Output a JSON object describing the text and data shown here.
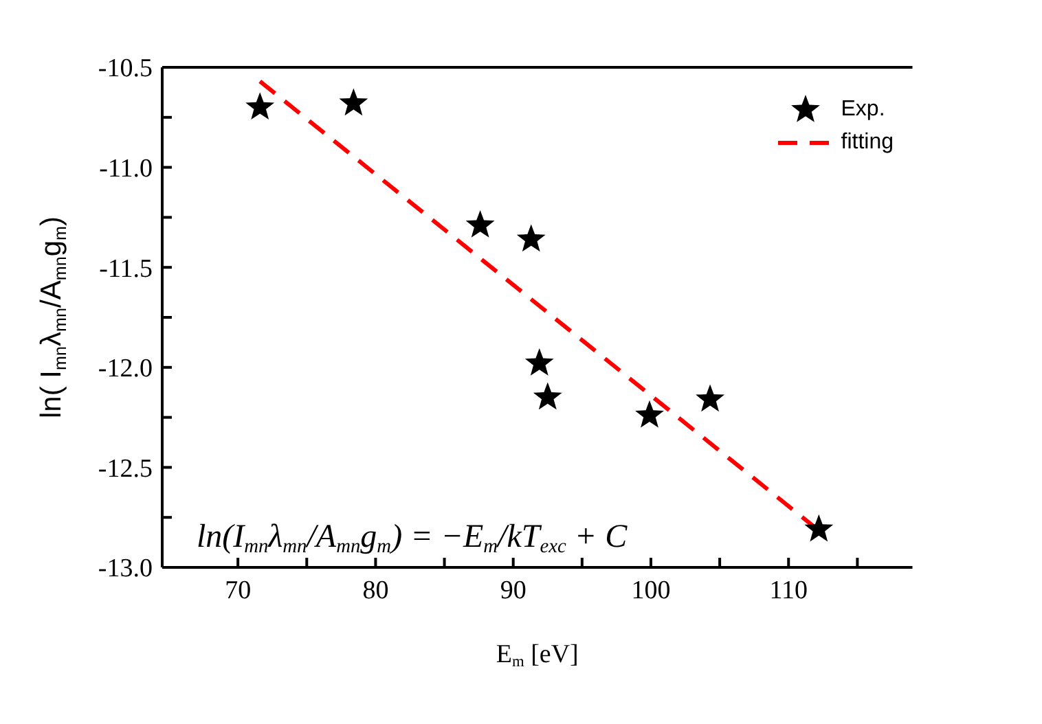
{
  "chart_data": {
    "type": "scatter",
    "xlabel": "E$_{m}$ [eV]",
    "ylabel": "ln( I$_{mn}$λ$_{mn}$/A$_{mn}$g$_{m}$)",
    "xlim": [
      64.5,
      119
    ],
    "xticks": [
      70,
      {
        "value": 75,
        "label": null
      },
      80,
      {
        "value": 85,
        "label": null
      },
      90,
      {
        "value": 95,
        "label": null
      },
      100,
      {
        "value": 105,
        "label": null
      },
      110,
      {
        "value": 115,
        "label": null
      }
    ],
    "ylim": [
      -13.0,
      -10.5
    ],
    "yticks": [
      {
        "value": -13.0,
        "label": "-13.0"
      },
      {
        "value": -12.75,
        "label": null
      },
      {
        "value": -12.5,
        "label": "-12.5"
      },
      {
        "value": -12.25,
        "label": null
      },
      {
        "value": -12.0,
        "label": "-12.0"
      },
      {
        "value": -11.75,
        "label": null
      },
      {
        "value": -11.5,
        "label": "-11.5"
      },
      {
        "value": -11.25,
        "label": null
      },
      {
        "value": -11.0,
        "label": "-11.0"
      },
      {
        "value": -10.75,
        "label": null
      },
      {
        "value": -10.5,
        "label": "-10.5"
      }
    ],
    "series": [
      {
        "name": "Exp.",
        "color": "#000000",
        "marker": "star",
        "x": [
          71.6,
          78.4,
          87.6,
          91.3,
          91.9,
          92.5,
          99.9,
          104.3,
          112.2
        ],
        "values": [
          -10.7,
          -10.68,
          -11.29,
          -11.36,
          -11.98,
          -12.15,
          -12.24,
          -12.16,
          -12.81
        ]
      },
      {
        "name": "fitting",
        "type": "line",
        "color": "#ff0000",
        "line_style": "dashed",
        "marker": "none",
        "x": [
          71.6,
          112.1
        ],
        "values": [
          -10.57,
          -12.81
        ]
      }
    ],
    "annotations": [
      "ln(I$_{mn}$λ$_{mn}$/A$_{mn}$g$_{m}$) = −E$_{m}$/kT$_{exc}$ + C"
    ],
    "legend": "top right"
  }
}
